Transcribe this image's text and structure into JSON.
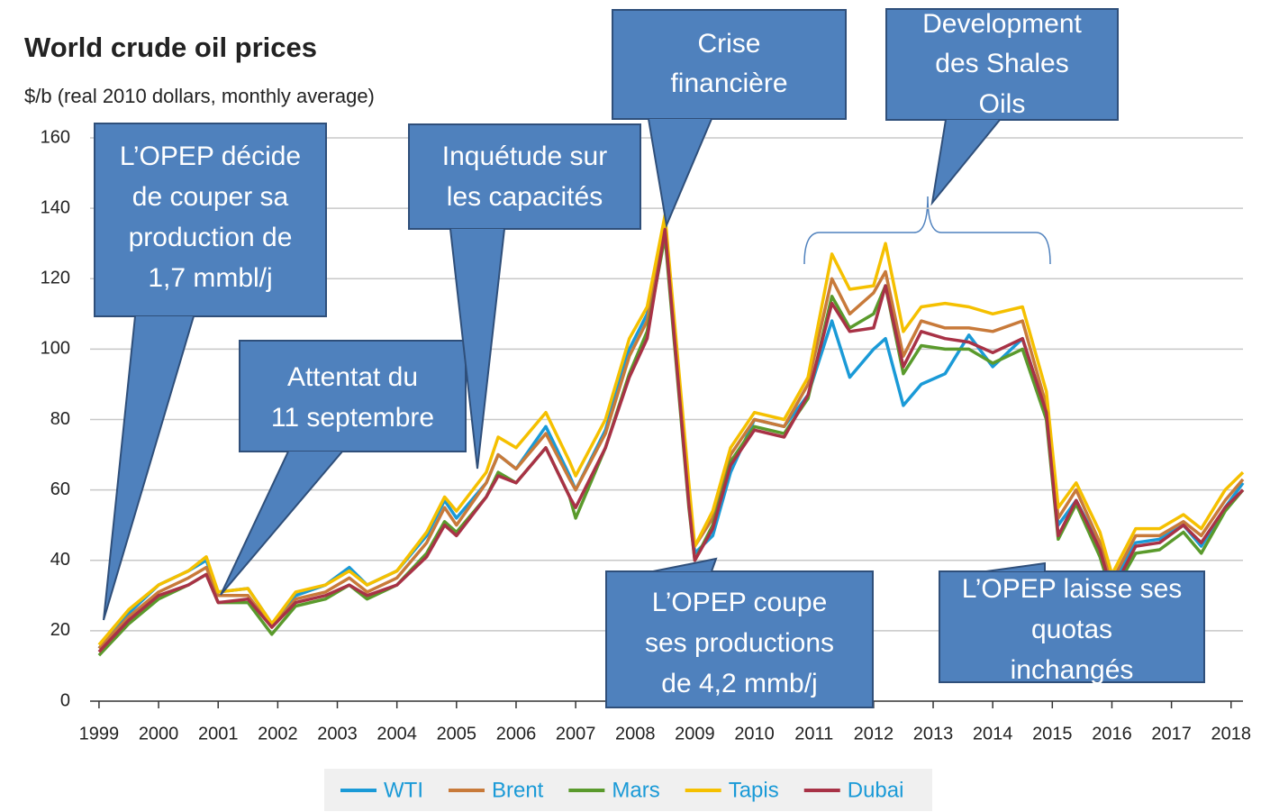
{
  "chart_data": {
    "type": "line",
    "title": "World crude oil prices",
    "subtitle": "$/b (real 2010 dollars, monthly average)",
    "x": [
      1999.0,
      1999.5,
      2000.0,
      2000.5,
      2000.8,
      2001.0,
      2001.5,
      2001.9,
      2002.3,
      2002.8,
      2003.2,
      2003.5,
      2004.0,
      2004.5,
      2004.8,
      2005.0,
      2005.5,
      2005.7,
      2006.0,
      2006.5,
      2006.9,
      2007.0,
      2007.5,
      2007.9,
      2008.2,
      2008.5,
      2008.9,
      2009.0,
      2009.3,
      2009.6,
      2010.0,
      2010.5,
      2010.9,
      2011.3,
      2011.6,
      2012.0,
      2012.2,
      2012.5,
      2012.8,
      2013.2,
      2013.6,
      2014.0,
      2014.5,
      2014.9,
      2015.1,
      2015.4,
      2015.8,
      2016.0,
      2016.4,
      2016.8,
      2017.2,
      2017.5,
      2017.9,
      2018.2
    ],
    "series": [
      {
        "name": "WTI",
        "color": "#1a9ad7",
        "values": [
          15,
          25,
          33,
          37,
          40,
          31,
          32,
          22,
          30,
          33,
          38,
          33,
          37,
          47,
          57,
          52,
          62,
          70,
          66,
          78,
          64,
          60,
          77,
          100,
          110,
          136,
          60,
          42,
          47,
          65,
          80,
          78,
          87,
          108,
          92,
          100,
          103,
          84,
          90,
          93,
          104,
          95,
          103,
          82,
          50,
          57,
          44,
          33,
          45,
          46,
          50,
          44,
          55,
          62
        ]
      },
      {
        "name": "Brent",
        "color": "#c87a3a",
        "values": [
          15,
          24,
          31,
          35,
          38,
          30,
          30,
          21,
          29,
          31,
          35,
          31,
          35,
          45,
          55,
          50,
          62,
          70,
          66,
          76,
          63,
          60,
          76,
          98,
          108,
          137,
          58,
          44,
          52,
          70,
          80,
          78,
          90,
          120,
          110,
          116,
          122,
          98,
          108,
          106,
          106,
          105,
          108,
          84,
          52,
          60,
          45,
          34,
          47,
          47,
          51,
          47,
          57,
          63
        ]
      },
      {
        "name": "Mars",
        "color": "#5a9a2c",
        "values": [
          13,
          22,
          29,
          33,
          36,
          28,
          28,
          19,
          27,
          29,
          33,
          29,
          33,
          42,
          51,
          48,
          58,
          65,
          62,
          72,
          58,
          52,
          72,
          93,
          105,
          132,
          55,
          40,
          50,
          68,
          78,
          76,
          86,
          115,
          106,
          110,
          118,
          93,
          101,
          100,
          100,
          96,
          100,
          80,
          46,
          56,
          41,
          30,
          42,
          43,
          48,
          42,
          54,
          60
        ]
      },
      {
        "name": "Tapis",
        "color": "#f5c000",
        "values": [
          16,
          26,
          33,
          37,
          41,
          31,
          32,
          22,
          31,
          33,
          37,
          33,
          37,
          48,
          58,
          54,
          65,
          75,
          72,
          82,
          68,
          64,
          80,
          103,
          112,
          138,
          62,
          44,
          54,
          72,
          82,
          80,
          92,
          127,
          117,
          118,
          130,
          105,
          112,
          113,
          112,
          110,
          112,
          88,
          55,
          62,
          48,
          36,
          49,
          49,
          53,
          49,
          60,
          65
        ]
      },
      {
        "name": "Dubai",
        "color": "#a83246",
        "values": [
          14,
          23,
          30,
          33,
          36,
          28,
          29,
          21,
          28,
          30,
          33,
          30,
          33,
          41,
          50,
          47,
          58,
          64,
          62,
          72,
          58,
          55,
          72,
          92,
          103,
          134,
          56,
          40,
          49,
          67,
          77,
          75,
          87,
          113,
          105,
          106,
          118,
          95,
          105,
          103,
          102,
          99,
          103,
          82,
          47,
          57,
          43,
          31,
          44,
          45,
          50,
          45,
          55,
          60
        ]
      }
    ],
    "xlim": [
      1998.85,
      2018.2
    ],
    "xticks": [
      1999,
      2000,
      2001,
      2002,
      2003,
      2004,
      2005,
      2006,
      2007,
      2008,
      2009,
      2010,
      2011,
      2012,
      2013,
      2014,
      2015,
      2016,
      2017,
      2018
    ],
    "ylim": [
      0,
      160
    ],
    "yticks": [
      0,
      20,
      40,
      60,
      80,
      100,
      120,
      140,
      160
    ],
    "grid": true,
    "annotations": [
      {
        "lines": [
          "L’OPEP décide",
          "de couper sa",
          "production de",
          "1,7 mmbl/j"
        ]
      },
      {
        "lines": [
          "Attentat du",
          "11 septembre"
        ]
      },
      {
        "lines": [
          "Inquétude sur",
          "les capacités"
        ]
      },
      {
        "lines": [
          "Crise",
          "financière"
        ]
      },
      {
        "lines": [
          "Development",
          "des Shales",
          "Oils"
        ]
      },
      {
        "lines": [
          "L’OPEP coupe",
          "ses productions",
          "de 4,2 mmb/j"
        ]
      },
      {
        "lines": [
          "L’OPEP laisse ses",
          "quotas",
          "inchangés"
        ]
      }
    ]
  }
}
